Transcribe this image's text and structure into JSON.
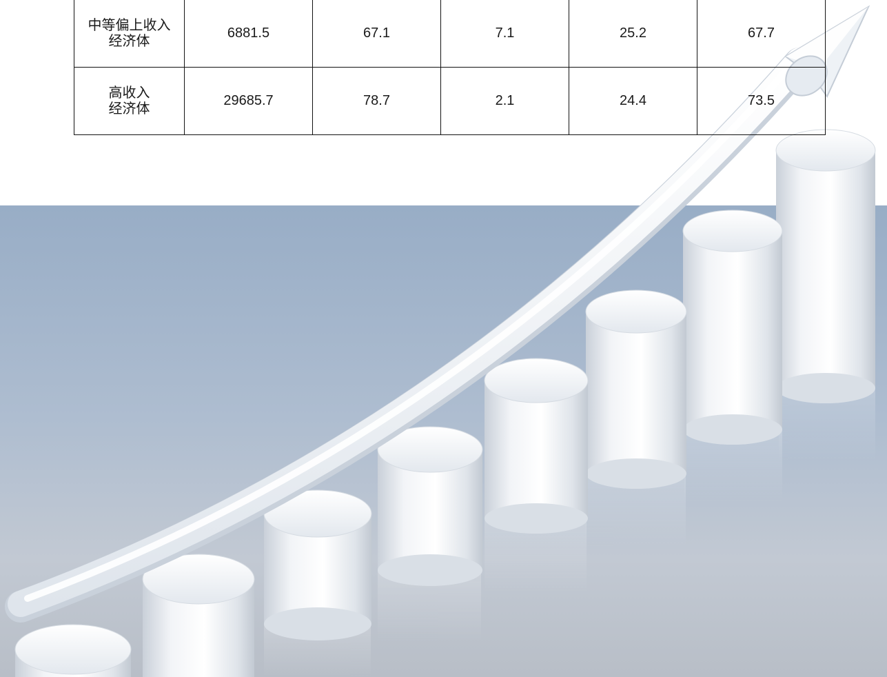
{
  "table": {
    "rows": [
      {
        "label_line1": "中等偏上收入",
        "label_line2": "经济体",
        "values": [
          "6881.5",
          "67.1",
          "7.1",
          "25.2",
          "67.7"
        ]
      },
      {
        "label_line1": "高收入",
        "label_line2": "经济体",
        "values": [
          "29685.7",
          "78.7",
          "2.1",
          "24.4",
          "73.5"
        ]
      }
    ]
  },
  "illustration": {
    "subject": "rising-bar-columns-with-upward-arrow",
    "colors": {
      "background_top": "#9fb3cb",
      "background_bottom": "#c6ced8",
      "column": "#e9edf2",
      "arrow": "#f4f6f9"
    }
  }
}
